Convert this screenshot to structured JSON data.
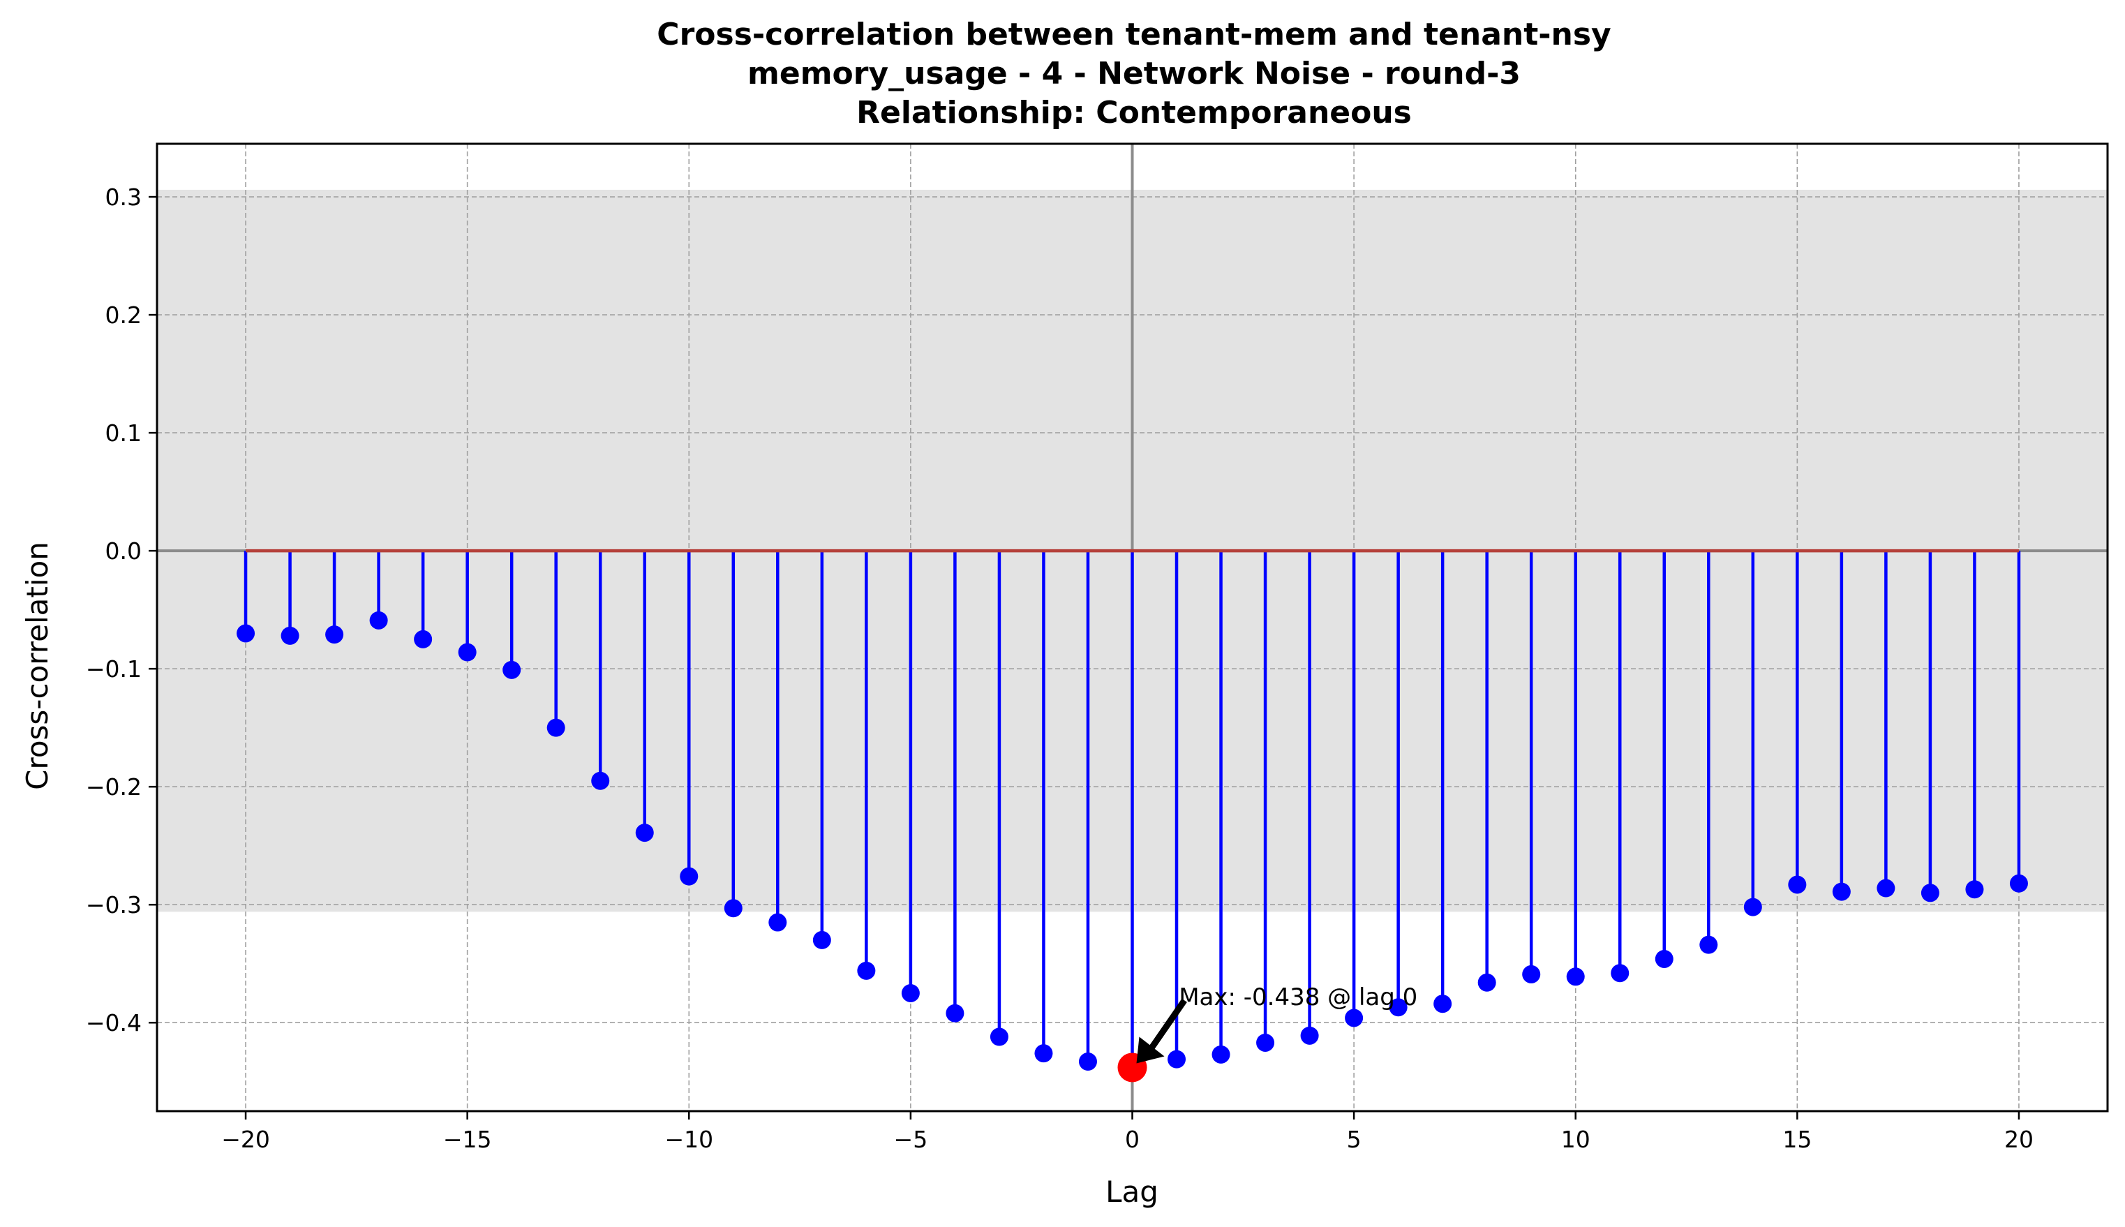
{
  "chart_data": {
    "type": "stem",
    "title": [
      "Cross-correlation between tenant-mem and tenant-nsy",
      "memory_usage - 4 - Network Noise - round-3",
      "Relationship: Contemporaneous"
    ],
    "xlabel": "Lag",
    "ylabel": "Cross-correlation",
    "xlim": [
      -22,
      22
    ],
    "ylim": [
      -0.475,
      0.345
    ],
    "xticks": [
      -20,
      -15,
      -10,
      -5,
      0,
      5,
      10,
      15,
      20
    ],
    "xtick_labels": [
      "−20",
      "−15",
      "−10",
      "−5",
      "0",
      "5",
      "10",
      "15",
      "20"
    ],
    "yticks": [
      -0.4,
      -0.3,
      -0.2,
      -0.1,
      0.0,
      0.1,
      0.2,
      0.3
    ],
    "ytick_labels": [
      "−0.4",
      "−0.3",
      "−0.2",
      "−0.1",
      "0.0",
      "0.1",
      "0.2",
      "0.3"
    ],
    "grid": true,
    "confidence_band": [
      -0.306,
      0.306
    ],
    "x": [
      -20,
      -19,
      -18,
      -17,
      -16,
      -15,
      -14,
      -13,
      -12,
      -11,
      -10,
      -9,
      -8,
      -7,
      -6,
      -5,
      -4,
      -3,
      -2,
      -1,
      0,
      1,
      2,
      3,
      4,
      5,
      6,
      7,
      8,
      9,
      10,
      11,
      12,
      13,
      14,
      15,
      16,
      17,
      18,
      19,
      20
    ],
    "values": [
      -0.07,
      -0.072,
      -0.071,
      -0.059,
      -0.075,
      -0.086,
      -0.101,
      -0.15,
      -0.195,
      -0.239,
      -0.276,
      -0.303,
      -0.315,
      -0.33,
      -0.356,
      -0.375,
      -0.392,
      -0.412,
      -0.426,
      -0.433,
      -0.438,
      -0.431,
      -0.427,
      -0.417,
      -0.411,
      -0.396,
      -0.387,
      -0.384,
      -0.366,
      -0.359,
      -0.361,
      -0.358,
      -0.346,
      -0.334,
      -0.302,
      -0.283,
      -0.289,
      -0.286,
      -0.29,
      -0.287,
      -0.282
    ],
    "highlight": {
      "x": 0,
      "y": -0.438
    },
    "annotation": "Max: -0.438 @ lag 0",
    "colors": {
      "stem": "#0000ff",
      "marker": "#0000ff",
      "highlight": "#ff0000",
      "baseline": "#b5403a",
      "band": "#e3e3e3",
      "zero_lines": "#8c8c8c",
      "grid": "#a0a0a0"
    }
  }
}
